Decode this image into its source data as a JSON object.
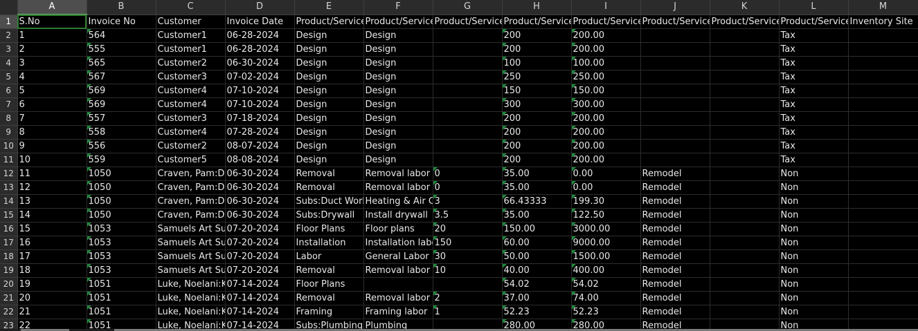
{
  "columns": [
    "A",
    "B",
    "C",
    "D",
    "E",
    "F",
    "G",
    "H",
    "I",
    "J",
    "K",
    "L",
    "M"
  ],
  "selected_column": "A",
  "selected_row": "1",
  "header_row": [
    "S.No",
    "Invoice No",
    "Customer",
    "Invoice Date",
    "Product/Service",
    "Product/Service",
    "Product/Service",
    "Product/Service",
    "Product/Service",
    "Product/Service",
    "Product/Service",
    "Product/Service",
    "Inventory Site"
  ],
  "rows": [
    {
      "n": "2",
      "c": [
        "1",
        "564",
        "Customer1",
        "06-28-2024",
        "Design",
        "Design",
        "",
        "200",
        "200.00",
        "",
        "",
        "Tax",
        ""
      ],
      "t": [
        1,
        7,
        8
      ]
    },
    {
      "n": "3",
      "c": [
        "2",
        "555",
        "Customer1",
        "06-28-2024",
        "Design",
        "Design",
        "",
        "200",
        "200.00",
        "",
        "",
        "Tax",
        ""
      ],
      "t": [
        1,
        7,
        8
      ]
    },
    {
      "n": "4",
      "c": [
        "3",
        "565",
        "Customer2",
        "06-30-2024",
        "Design",
        "Design",
        "",
        "100",
        "100.00",
        "",
        "",
        "Tax",
        ""
      ],
      "t": [
        1,
        7,
        8
      ]
    },
    {
      "n": "5",
      "c": [
        "4",
        "567",
        "Customer3",
        "07-02-2024",
        "Design",
        "Design",
        "",
        "250",
        "250.00",
        "",
        "",
        "Tax",
        ""
      ],
      "t": [
        1,
        7,
        8
      ]
    },
    {
      "n": "6",
      "c": [
        "5",
        "569",
        "Customer4",
        "07-10-2024",
        "Design",
        "Design",
        "",
        "150",
        "150.00",
        "",
        "",
        "Tax",
        ""
      ],
      "t": [
        1,
        7,
        8
      ]
    },
    {
      "n": "7",
      "c": [
        "6",
        "569",
        "Customer4",
        "07-10-2024",
        "Design",
        "Design",
        "",
        "300",
        "300.00",
        "",
        "",
        "Tax",
        ""
      ],
      "t": [
        1,
        7,
        8
      ]
    },
    {
      "n": "8",
      "c": [
        "7",
        "557",
        "Customer3",
        "07-18-2024",
        "Design",
        "Design",
        "",
        "200",
        "200.00",
        "",
        "",
        "Tax",
        ""
      ],
      "t": [
        1,
        7,
        8
      ]
    },
    {
      "n": "9",
      "c": [
        "8",
        "558",
        "Customer4",
        "07-28-2024",
        "Design",
        "Design",
        "",
        "200",
        "200.00",
        "",
        "",
        "Tax",
        ""
      ],
      "t": [
        1,
        7,
        8
      ]
    },
    {
      "n": "10",
      "c": [
        "9",
        "556",
        "Customer2",
        "08-07-2024",
        "Design",
        "Design",
        "",
        "200",
        "200.00",
        "",
        "",
        "Tax",
        ""
      ],
      "t": [
        1,
        7,
        8
      ]
    },
    {
      "n": "11",
      "c": [
        "10",
        "559",
        "Customer5",
        "08-08-2024",
        "Design",
        "Design",
        "",
        "200",
        "200.00",
        "",
        "",
        "Tax",
        ""
      ],
      "t": [
        1,
        7,
        8
      ]
    },
    {
      "n": "12",
      "c": [
        "11",
        "1050",
        "Craven, Pam:Du",
        "06-30-2024",
        "Removal",
        "Removal labor -",
        "0",
        "35.00",
        "0.00",
        "Remodel",
        "",
        "Non",
        ""
      ],
      "t": [
        1,
        6,
        7,
        8
      ]
    },
    {
      "n": "13",
      "c": [
        "12",
        "1050",
        "Craven, Pam:Du",
        "06-30-2024",
        "Removal",
        "Removal labor -",
        "0",
        "35.00",
        "0.00",
        "Remodel",
        "",
        "Non",
        ""
      ],
      "t": [
        1,
        6,
        7,
        8
      ]
    },
    {
      "n": "14",
      "c": [
        "13",
        "1050",
        "Craven, Pam:Du",
        "06-30-2024",
        "Subs:Duct Work",
        "Heating & Air Co",
        "3",
        "66.43333",
        "199.30",
        "Remodel",
        "",
        "Non",
        ""
      ],
      "t": [
        1,
        6,
        7,
        8
      ]
    },
    {
      "n": "15",
      "c": [
        "14",
        "1050",
        "Craven, Pam:Du",
        "06-30-2024",
        "Subs:Drywall",
        "Install drywall",
        "3.5",
        "35.00",
        "122.50",
        "Remodel",
        "",
        "Non",
        ""
      ],
      "t": [
        1,
        6,
        7,
        8
      ]
    },
    {
      "n": "16",
      "c": [
        "15",
        "1053",
        "Samuels Art Sup",
        "07-20-2024",
        "Floor Plans",
        "Floor plans",
        "20",
        "150.00",
        "3000.00",
        "Remodel",
        "",
        "Non",
        ""
      ],
      "t": [
        1,
        6,
        7,
        8
      ]
    },
    {
      "n": "17",
      "c": [
        "16",
        "1053",
        "Samuels Art Sup",
        "07-20-2024",
        "Installation",
        "Installation labo",
        "150",
        "60.00",
        "9000.00",
        "Remodel",
        "",
        "Non",
        ""
      ],
      "t": [
        1,
        6,
        7,
        8
      ]
    },
    {
      "n": "18",
      "c": [
        "17",
        "1053",
        "Samuels Art Sup",
        "07-20-2024",
        "Labor",
        "General Labor",
        "30",
        "50.00",
        "1500.00",
        "Remodel",
        "",
        "Non",
        ""
      ],
      "t": [
        1,
        6,
        7,
        8
      ]
    },
    {
      "n": "19",
      "c": [
        "18",
        "1053",
        "Samuels Art Sup",
        "07-20-2024",
        "Removal",
        "Removal labor",
        "10",
        "40.00",
        "400.00",
        "Remodel",
        "",
        "Non",
        ""
      ],
      "t": [
        1,
        6,
        7,
        8
      ]
    },
    {
      "n": "20",
      "c": [
        "19",
        "1051",
        "Luke, Noelani:K",
        "07-14-2024",
        "Floor Plans",
        "",
        "",
        "54.02",
        "54.02",
        "Remodel",
        "",
        "Non",
        ""
      ],
      "t": [
        1,
        7,
        8
      ]
    },
    {
      "n": "21",
      "c": [
        "20",
        "1051",
        "Luke, Noelani:K",
        "07-14-2024",
        "Removal",
        "Removal labor",
        "2",
        "37.00",
        "74.00",
        "Remodel",
        "",
        "Non",
        ""
      ],
      "t": [
        1,
        6,
        7,
        8
      ]
    },
    {
      "n": "22",
      "c": [
        "21",
        "1051",
        "Luke, Noelani:K",
        "07-14-2024",
        "Framing",
        "Framing labor",
        "1",
        "52.23",
        "52.23",
        "Remodel",
        "",
        "Non",
        ""
      ],
      "t": [
        1,
        6,
        7,
        8
      ]
    },
    {
      "n": "23",
      "c": [
        "22",
        "1051",
        "Luke, Noelani:K",
        "07-14-2024",
        "Subs:Plumbing",
        "Plumbing",
        "",
        "280.00",
        "280.00",
        "Remodel",
        "",
        "Non",
        ""
      ],
      "t": [
        1,
        7,
        8
      ]
    }
  ]
}
